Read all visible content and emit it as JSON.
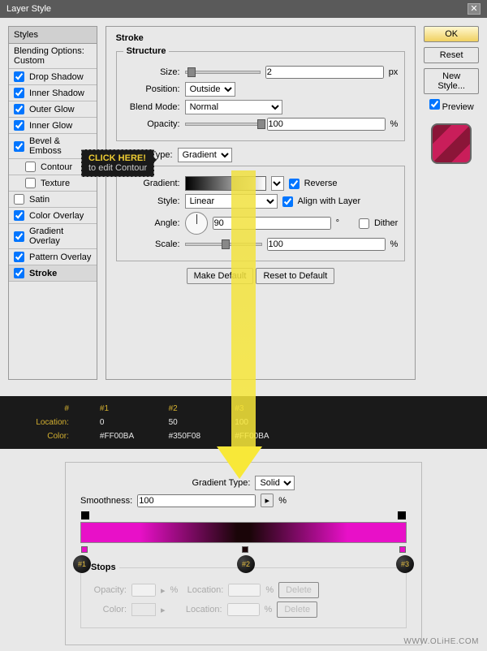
{
  "title": "Layer Style",
  "styles_header": "Styles",
  "blending_options": "Blending Options: Custom",
  "style_list": [
    {
      "label": "Drop Shadow",
      "checked": true
    },
    {
      "label": "Inner Shadow",
      "checked": true
    },
    {
      "label": "Outer Glow",
      "checked": true
    },
    {
      "label": "Inner Glow",
      "checked": true
    },
    {
      "label": "Bevel & Emboss",
      "checked": true
    },
    {
      "label": "Contour",
      "checked": false,
      "sub": true
    },
    {
      "label": "Texture",
      "checked": false,
      "sub": true
    },
    {
      "label": "Satin",
      "checked": false
    },
    {
      "label": "Color Overlay",
      "checked": true
    },
    {
      "label": "Gradient Overlay",
      "checked": true
    },
    {
      "label": "Pattern Overlay",
      "checked": true
    },
    {
      "label": "Stroke",
      "checked": true,
      "active": true
    }
  ],
  "stroke": {
    "title": "Stroke",
    "structure": "Structure",
    "size_label": "Size:",
    "size_value": "2",
    "size_unit": "px",
    "position_label": "Position:",
    "position_value": "Outside",
    "blend_label": "Blend Mode:",
    "blend_value": "Normal",
    "opacity_label": "Opacity:",
    "opacity_value": "100",
    "opacity_unit": "%",
    "filltype_label": "Fill Type:",
    "filltype_value": "Gradient",
    "gradient_label": "Gradient:",
    "reverse_label": "Reverse",
    "reverse_checked": true,
    "style_label": "Style:",
    "style_value": "Linear",
    "align_label": "Align with Layer",
    "align_checked": true,
    "angle_label": "Angle:",
    "angle_value": "90",
    "angle_unit": "°",
    "dither_label": "Dither",
    "dither_checked": false,
    "scale_label": "Scale:",
    "scale_value": "100",
    "scale_unit": "%",
    "make_default": "Make Default",
    "reset_default": "Reset to Default"
  },
  "buttons": {
    "ok": "OK",
    "reset": "Reset",
    "new_style": "New Style...",
    "preview": "Preview"
  },
  "tooltip": {
    "line1": "CLICK HERE!",
    "line2": "to edit Contour"
  },
  "color_table": {
    "headers": [
      "#",
      "#1",
      "#2",
      "#3"
    ],
    "location_label": "Location:",
    "locations": [
      "0",
      "50",
      "100"
    ],
    "color_label": "Color:",
    "colors": [
      "#FF00BA",
      "#350F08",
      "#FF00BA"
    ]
  },
  "gradient_editor": {
    "type_label": "Gradient Type:",
    "type_value": "Solid",
    "smooth_label": "Smoothness:",
    "smooth_value": "100",
    "smooth_unit": "%",
    "stops_label": "Stops",
    "opacity_label": "Opacity:",
    "opacity_unit": "%",
    "location_label": "Location:",
    "location_unit": "%",
    "color_label": "Color:",
    "delete": "Delete",
    "stop_markers": [
      "#1",
      "#2",
      "#3"
    ],
    "gradient_colors": [
      "#e810c8",
      "#1a0508",
      "#e810c8"
    ],
    "stop_positions": [
      0,
      50,
      100
    ]
  },
  "footer": "WWW.OLiHE.COM"
}
